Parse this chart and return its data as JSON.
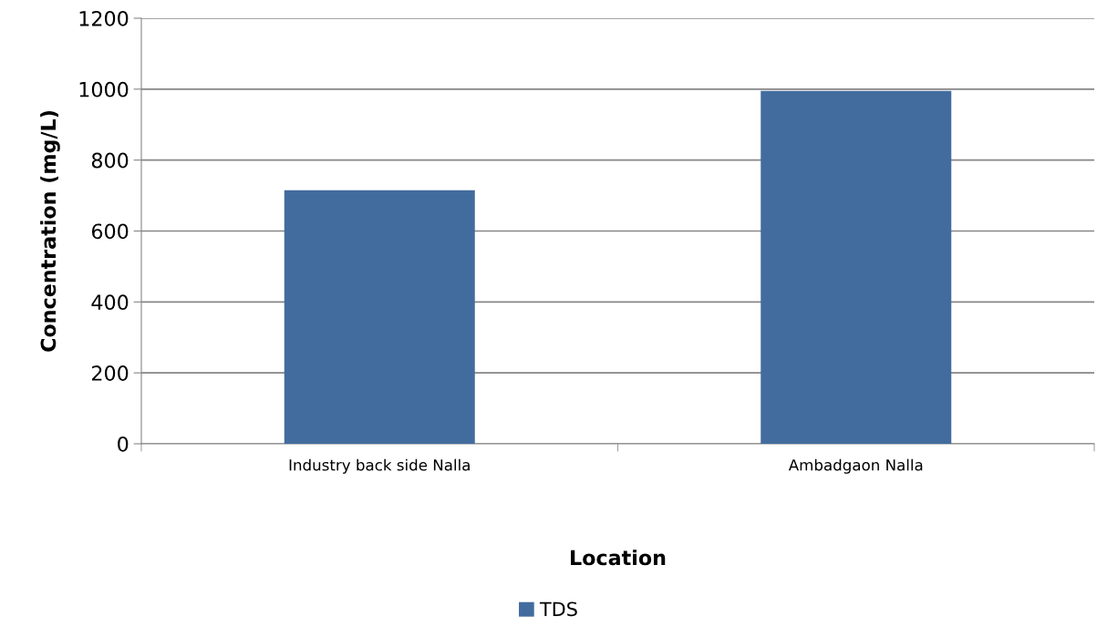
{
  "chart_data": {
    "type": "bar",
    "xlabel": "Location",
    "ylabel": "Concentration (mg/L)",
    "categories": [
      "Industry back side Nalla",
      "Ambadgaon Nalla"
    ],
    "series": [
      {
        "name": "TDS",
        "color": "#426c9e",
        "values": [
          715,
          995
        ]
      }
    ],
    "ylim": [
      0,
      1200
    ],
    "yticks": [
      0,
      200,
      400,
      600,
      800,
      1000,
      1200
    ],
    "grid": "y",
    "legend": "bottom"
  }
}
